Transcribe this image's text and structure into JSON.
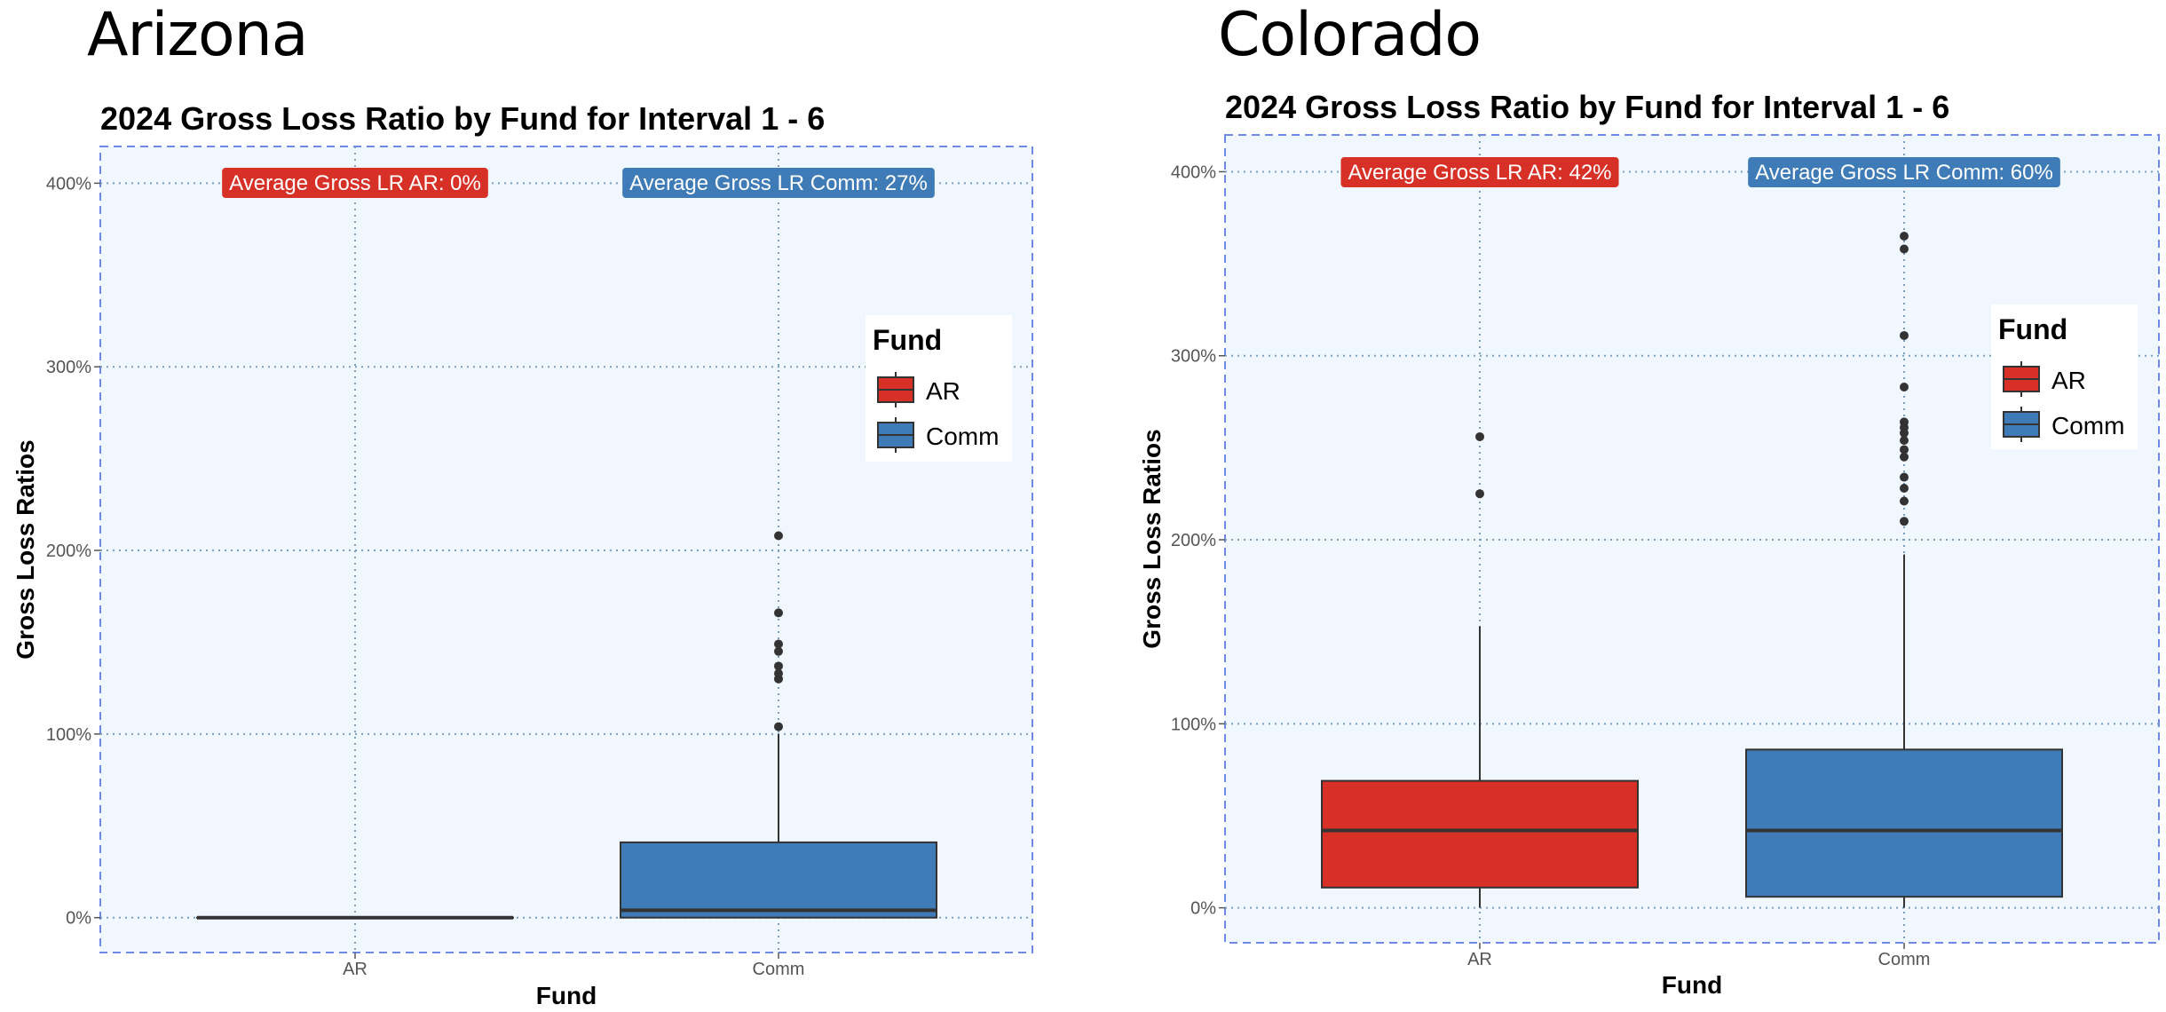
{
  "panels": [
    {
      "state": "Arizona"
    },
    {
      "state": "Colorado"
    }
  ],
  "chart_data": [
    {
      "type": "box",
      "title": "2024 Gross Loss Ratio by Fund for Interval 1 - 6",
      "xlabel": "Fund",
      "ylabel": "Gross Loss Ratios",
      "ylim": [
        -0.19,
        4.2
      ],
      "yticks": [
        0,
        1,
        2,
        3,
        4
      ],
      "ytick_labels": [
        "0%",
        "100%",
        "200%",
        "300%",
        "400%"
      ],
      "categories": [
        "AR",
        "Comm"
      ],
      "grid": true,
      "legend": {
        "title": "Fund",
        "position": "right",
        "entries": [
          "AR",
          "Comm"
        ]
      },
      "colors": {
        "AR": "#d73027",
        "Comm": "#3f7bb6",
        "panel_bg": "#f0f7ff",
        "panel_border": "#6f8ae6",
        "grid": "#7a9fbd",
        "median": "#333333"
      },
      "series": [
        {
          "name": "AR",
          "q1": 0,
          "median": 0,
          "q3": 0,
          "whisker_low": 0,
          "whisker_high": 0,
          "outliers": [],
          "average_label": "Average Gross LR AR: 0%"
        },
        {
          "name": "Comm",
          "q1": 0.0,
          "median": 0.04,
          "q3": 0.41,
          "whisker_low": 0,
          "whisker_high": 1.0,
          "outliers": [
            1.04,
            1.3,
            1.33,
            1.37,
            1.45,
            1.49,
            1.66,
            2.08
          ],
          "average_label": "Average Gross LR Comm: 27%"
        }
      ]
    },
    {
      "type": "box",
      "title": "2024 Gross Loss Ratio by Fund for Interval 1 - 6",
      "xlabel": "Fund",
      "ylabel": "Gross Loss Ratios",
      "ylim": [
        -0.19,
        4.2
      ],
      "yticks": [
        0,
        1,
        2,
        3,
        4
      ],
      "ytick_labels": [
        "0%",
        "100%",
        "200%",
        "300%",
        "400%"
      ],
      "categories": [
        "AR",
        "Comm"
      ],
      "grid": true,
      "legend": {
        "title": "Fund",
        "position": "right",
        "entries": [
          "AR",
          "Comm"
        ]
      },
      "colors": {
        "AR": "#d73027",
        "Comm": "#3f7bb6",
        "panel_bg": "#f0f7ff",
        "panel_border": "#6f8ae6",
        "grid": "#7a9fbd",
        "median": "#333333"
      },
      "series": [
        {
          "name": "AR",
          "q1": 0.11,
          "median": 0.42,
          "q3": 0.69,
          "whisker_low": 0,
          "whisker_high": 1.53,
          "outliers": [
            2.25,
            2.56
          ],
          "average_label": "Average Gross LR AR: 42%"
        },
        {
          "name": "Comm",
          "q1": 0.06,
          "median": 0.42,
          "q3": 0.86,
          "whisker_low": 0,
          "whisker_high": 1.92,
          "outliers": [
            2.1,
            2.21,
            2.28,
            2.34,
            2.45,
            2.49,
            2.54,
            2.58,
            2.61,
            2.64,
            2.83,
            3.11,
            3.58,
            3.65
          ],
          "average_label": "Average Gross LR Comm: 60%"
        }
      ]
    }
  ]
}
